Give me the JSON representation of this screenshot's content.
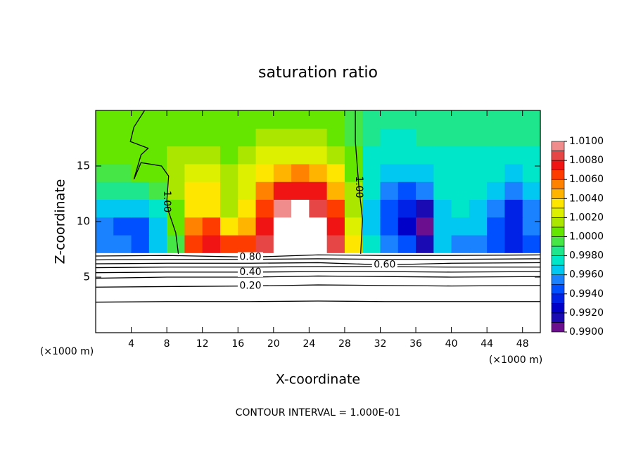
{
  "chart_data": {
    "type": "contour",
    "title": "saturation ratio",
    "x_label": "X-coordinate",
    "y_label": "Z-coordinate",
    "axis_units": [
      "(×1000 m)",
      "(×1000 m)"
    ],
    "footer": "CONTOUR INTERVAL = 1.000E-01",
    "xlim": [
      0,
      50
    ],
    "ylim": [
      0,
      20
    ],
    "xticks": [
      4,
      8,
      12,
      16,
      20,
      24,
      28,
      32,
      36,
      40,
      44,
      48
    ],
    "yticks": [
      5,
      10,
      15
    ],
    "levels": [
      0.99,
      0.991,
      0.992,
      0.993,
      0.994,
      0.995,
      0.996,
      0.997,
      0.998,
      0.999,
      1.0,
      1.001,
      1.002,
      1.003,
      1.004,
      1.005,
      1.006,
      1.007,
      1.008,
      1.009,
      1.01
    ],
    "colors": [
      "#6b0f8f",
      "#1a0ab4",
      "#0000c8",
      "#0022e6",
      "#0050ff",
      "#1a82ff",
      "#00c8f0",
      "#00e6c8",
      "#1ee68c",
      "#46e646",
      "#64e600",
      "#aae600",
      "#dcf000",
      "#ffe600",
      "#ffb400",
      "#ff8200",
      "#ff3c00",
      "#f01414",
      "#e64646",
      "#f08c8c"
    ],
    "colorbar_ticks": [
      {
        "value": 1.01,
        "label": "1.0100"
      },
      {
        "value": 1.008,
        "label": "1.0080"
      },
      {
        "value": 1.006,
        "label": "1.0060"
      },
      {
        "value": 1.004,
        "label": "1.0040"
      },
      {
        "value": 1.002,
        "label": "1.0020"
      },
      {
        "value": 1.0,
        "label": "1.0000"
      },
      {
        "value": 0.998,
        "label": "0.9980"
      },
      {
        "value": 0.996,
        "label": "0.9960"
      },
      {
        "value": 0.994,
        "label": "0.9940"
      },
      {
        "value": 0.992,
        "label": "0.9920"
      },
      {
        "value": 0.99,
        "label": "0.9900"
      }
    ],
    "field_x": [
      1,
      3,
      5,
      7,
      9,
      11,
      13,
      15,
      17,
      19,
      21,
      23,
      25,
      27,
      29,
      31,
      33,
      35,
      37,
      39,
      41,
      43,
      45,
      47,
      49
    ],
    "field_y": [
      8,
      9.6,
      11.2,
      12.8,
      14.4,
      16,
      17.6,
      19.2
    ],
    "z": [
      [
        0.9955,
        0.995,
        0.9945,
        0.996,
        0.999,
        1.0065,
        1.007,
        1.0065,
        1.006,
        1.008,
        1.012,
        1.013,
        1.012,
        1.008,
        1.003,
        0.997,
        0.995,
        0.994,
        0.9915,
        0.996,
        0.9955,
        0.995,
        0.994,
        0.993,
        0.9945
      ],
      [
        0.995,
        0.9945,
        0.994,
        0.9965,
        1.0,
        1.005,
        1.006,
        1.003,
        1.004,
        1.0075,
        1.012,
        1.013,
        1.012,
        1.0075,
        1.002,
        0.996,
        0.994,
        0.9925,
        0.9905,
        0.996,
        0.9965,
        0.996,
        0.9945,
        0.993,
        0.995
      ],
      [
        0.9965,
        0.996,
        0.9965,
        0.9975,
        1.0005,
        1.0035,
        1.003,
        1.0015,
        1.003,
        1.0065,
        1.009,
        1.012,
        1.0085,
        1.006,
        1.0015,
        0.9965,
        0.9945,
        0.993,
        0.9915,
        0.9965,
        0.997,
        0.9965,
        0.9955,
        0.9935,
        0.9955
      ],
      [
        0.998,
        0.998,
        0.9985,
        0.999,
        1.001,
        1.003,
        1.0035,
        1.001,
        1.002,
        1.005,
        1.007,
        1.0075,
        1.007,
        1.0045,
        1.001,
        0.997,
        0.9955,
        0.9945,
        0.995,
        0.997,
        0.9975,
        0.997,
        0.9965,
        0.9955,
        0.9965
      ],
      [
        0.999,
        0.9995,
        1.0,
        1.0005,
        1.0015,
        1.002,
        1.002,
        1.001,
        1.002,
        1.0035,
        1.0045,
        1.005,
        1.0045,
        1.003,
        1.0005,
        0.997,
        0.996,
        0.996,
        0.9965,
        0.997,
        0.9975,
        0.9975,
        0.997,
        0.9965,
        0.997
      ],
      [
        1.0,
        1.0,
        1.0,
        1.0005,
        1.001,
        1.0012,
        1.001,
        1.0008,
        1.0012,
        1.002,
        1.0025,
        1.0028,
        1.0025,
        1.0015,
        1.0,
        0.9975,
        0.997,
        0.997,
        0.9975,
        0.9975,
        0.9978,
        0.9978,
        0.9975,
        0.9975,
        0.9978
      ],
      [
        1.0002,
        1.0002,
        1.0,
        1.0002,
        1.0005,
        1.0008,
        1.0008,
        1.0005,
        1.0008,
        1.0012,
        1.0015,
        1.0015,
        1.0012,
        1.0008,
        0.9998,
        0.998,
        0.9978,
        0.9978,
        0.998,
        0.998,
        0.9982,
        0.9982,
        0.998,
        0.998,
        0.9982
      ],
      [
        1.0002,
        1.0002,
        1.0002,
        1.0003,
        1.0005,
        1.0005,
        1.0005,
        1.0003,
        1.0005,
        1.0008,
        1.0008,
        1.0008,
        1.0008,
        1.0005,
        0.9998,
        0.9985,
        0.9983,
        0.9983,
        0.9985,
        0.9985,
        0.9985,
        0.9985,
        0.9983,
        0.9983,
        0.9985
      ]
    ],
    "contours": [
      {
        "x": [
          0,
          8,
          17.4,
          25,
          32.5,
          40,
          50
        ],
        "y": [
          2.75,
          2.8,
          2.8,
          2.85,
          2.8,
          2.8,
          2.8
        ]
      },
      {
        "label": "0.20",
        "x": [
          0,
          8,
          17.4,
          25,
          32.5,
          40,
          50
        ],
        "y": [
          4.1,
          4.15,
          4.2,
          4.3,
          4.25,
          4.2,
          4.25
        ]
      },
      {
        "x": [
          0,
          8,
          17.4,
          25,
          32.5,
          40,
          50
        ],
        "y": [
          4.9,
          5.0,
          5.0,
          5.1,
          5.05,
          5.0,
          5.05
        ]
      },
      {
        "label": "0.40",
        "x": [
          0,
          8,
          17.4,
          25,
          32.5,
          40,
          50
        ],
        "y": [
          5.4,
          5.45,
          5.45,
          5.5,
          5.5,
          5.45,
          5.5
        ]
      },
      {
        "x": [
          0,
          8,
          17.4,
          25,
          32.5,
          40,
          50
        ],
        "y": [
          5.85,
          5.9,
          5.9,
          5.95,
          5.95,
          5.9,
          5.9
        ]
      },
      {
        "label": "0.60",
        "x": [
          0,
          8,
          17.4,
          25,
          32.5,
          40,
          50
        ],
        "y": [
          6.2,
          6.25,
          6.25,
          6.3,
          6.1,
          6.25,
          6.3
        ]
      },
      {
        "x": [
          0,
          8,
          17.4,
          25,
          32.5,
          40,
          50
        ],
        "y": [
          6.55,
          6.6,
          6.6,
          6.65,
          6.6,
          6.6,
          6.65
        ]
      },
      {
        "label": "0.80",
        "x": [
          0,
          8,
          17.4,
          25,
          32.5,
          40,
          50
        ],
        "y": [
          6.9,
          6.95,
          6.8,
          7.0,
          6.95,
          6.95,
          7.0
        ]
      },
      {
        "label": "1.00",
        "x": [
          5.5,
          4.3,
          3.9,
          5.9,
          5.1,
          4.3,
          5.1,
          7.4,
          8.2,
          8.0,
          8.2,
          9.0,
          9.3
        ],
        "y": [
          20,
          18.5,
          17.2,
          16.6,
          16,
          13.8,
          15.3,
          15,
          14.1,
          11.8,
          10.9,
          9,
          7.1
        ]
      },
      {
        "label": "1.00",
        "x": [
          29.2,
          29.2,
          29.6,
          29.9,
          30.0,
          29.8
        ],
        "y": [
          20,
          17.2,
          13.1,
          11,
          10.2,
          7.1
        ]
      }
    ]
  }
}
